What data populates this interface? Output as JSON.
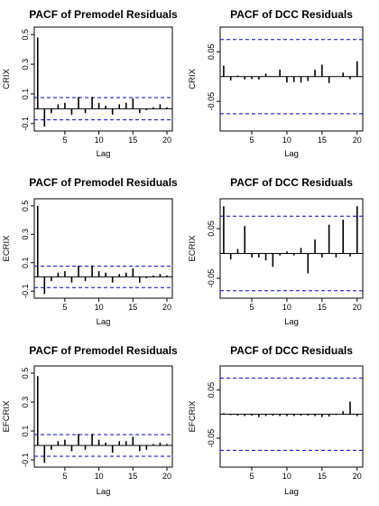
{
  "chart_data": [
    {
      "type": "bar",
      "title": "PACF of Premodel Residuals",
      "xlabel": "Lag",
      "ylabel": "CRIX",
      "x": [
        1,
        2,
        3,
        4,
        5,
        6,
        7,
        8,
        9,
        10,
        11,
        12,
        13,
        14,
        15,
        16,
        17,
        18,
        19,
        20
      ],
      "values": [
        0.48,
        -0.12,
        -0.03,
        0.03,
        0.04,
        -0.04,
        0.08,
        -0.03,
        0.08,
        0.04,
        0.02,
        -0.04,
        0.03,
        0.04,
        0.07,
        -0.03,
        -0.01,
        0.01,
        0.03,
        0.01
      ],
      "xlim": [
        0.5,
        20.8
      ],
      "ylim": [
        -0.15,
        0.55
      ],
      "xticks": [
        5,
        10,
        15,
        20
      ],
      "yticks": [
        -0.1,
        0.1,
        0.3,
        0.5
      ],
      "ytick_labels": [
        "-0.1",
        "0.1",
        "0.3",
        "0.5"
      ],
      "confidence_band": 0.075,
      "band_color": "#0000cc"
    },
    {
      "type": "bar",
      "title": "PACF of DCC Residuals",
      "xlabel": "Lag",
      "ylabel": "CRIX",
      "x": [
        1,
        2,
        3,
        4,
        5,
        6,
        7,
        8,
        9,
        10,
        11,
        12,
        13,
        14,
        15,
        16,
        17,
        18,
        19,
        20
      ],
      "values": [
        0.022,
        -0.008,
        0.002,
        -0.006,
        -0.005,
        -0.006,
        0.006,
        0.0,
        0.014,
        -0.012,
        -0.011,
        -0.012,
        -0.009,
        0.014,
        0.024,
        -0.013,
        0.0,
        0.008,
        -0.005,
        0.031
      ],
      "xlim": [
        0.5,
        20.8
      ],
      "ylim": [
        -0.11,
        0.1
      ],
      "xticks": [
        5,
        10,
        15,
        20
      ],
      "yticks": [
        -0.05,
        0.05
      ],
      "ytick_labels": [
        "-0.05",
        "0.05"
      ],
      "confidence_band": 0.075,
      "band_color": "#0000cc"
    },
    {
      "type": "bar",
      "title": "PACF of Premodel Residuals",
      "xlabel": "Lag",
      "ylabel": "ECRIX",
      "x": [
        1,
        2,
        3,
        4,
        5,
        6,
        7,
        8,
        9,
        10,
        11,
        12,
        13,
        14,
        15,
        16,
        17,
        18,
        19,
        20
      ],
      "values": [
        0.5,
        -0.12,
        -0.03,
        0.03,
        0.04,
        -0.04,
        0.08,
        -0.03,
        0.08,
        0.04,
        0.03,
        -0.04,
        0.02,
        0.03,
        0.06,
        -0.04,
        -0.01,
        0.01,
        0.02,
        0.01
      ],
      "xlim": [
        0.5,
        20.8
      ],
      "ylim": [
        -0.15,
        0.55
      ],
      "xticks": [
        5,
        10,
        15,
        20
      ],
      "yticks": [
        -0.1,
        0.1,
        0.3,
        0.5
      ],
      "ytick_labels": [
        "-0.1",
        "0.1",
        "0.3",
        "0.5"
      ],
      "confidence_band": 0.075,
      "band_color": "#0000cc"
    },
    {
      "type": "bar",
      "title": "PACF of DCC Residuals",
      "xlabel": "Lag",
      "ylabel": "ECRIX",
      "x": [
        1,
        2,
        3,
        4,
        5,
        6,
        7,
        8,
        9,
        10,
        11,
        12,
        13,
        14,
        15,
        16,
        17,
        18,
        19,
        20
      ],
      "values": [
        0.095,
        -0.012,
        0.009,
        0.055,
        -0.008,
        -0.008,
        -0.014,
        -0.027,
        -0.004,
        0.004,
        -0.004,
        0.011,
        -0.04,
        0.028,
        -0.008,
        0.058,
        -0.008,
        0.068,
        -0.006,
        0.095
      ],
      "xlim": [
        0.5,
        20.8
      ],
      "ylim": [
        -0.09,
        0.11
      ],
      "xticks": [
        5,
        10,
        15,
        20
      ],
      "yticks": [
        -0.05,
        0.05
      ],
      "ytick_labels": [
        "-0.05",
        "0.05"
      ],
      "confidence_band": 0.075,
      "band_color": "#0000cc"
    },
    {
      "type": "bar",
      "title": "PACF of Premodel Residuals",
      "xlabel": "Lag",
      "ylabel": "EFCRIX",
      "x": [
        1,
        2,
        3,
        4,
        5,
        6,
        7,
        8,
        9,
        10,
        11,
        12,
        13,
        14,
        15,
        16,
        17,
        18,
        19,
        20
      ],
      "values": [
        0.48,
        -0.12,
        -0.03,
        0.03,
        0.04,
        -0.04,
        0.08,
        -0.03,
        0.08,
        0.04,
        0.02,
        -0.05,
        0.03,
        0.03,
        0.06,
        -0.04,
        -0.03,
        0.01,
        0.02,
        0.01
      ],
      "xlim": [
        0.5,
        20.8
      ],
      "ylim": [
        -0.15,
        0.55
      ],
      "xticks": [
        5,
        10,
        15,
        20
      ],
      "yticks": [
        -0.1,
        0.1,
        0.3,
        0.5
      ],
      "ytick_labels": [
        "-0.1",
        "0.1",
        "0.3",
        "0.5"
      ],
      "confidence_band": 0.075,
      "band_color": "#0000cc"
    },
    {
      "type": "bar",
      "title": "PACF of DCC Residuals",
      "xlabel": "Lag",
      "ylabel": "EFCRIX",
      "x": [
        1,
        2,
        3,
        4,
        5,
        6,
        7,
        8,
        9,
        10,
        11,
        12,
        13,
        14,
        15,
        16,
        17,
        18,
        19,
        20
      ],
      "values": [
        0.002,
        -0.002,
        -0.003,
        -0.004,
        -0.003,
        -0.006,
        -0.004,
        -0.003,
        -0.004,
        -0.004,
        -0.004,
        -0.003,
        -0.003,
        -0.004,
        -0.006,
        -0.005,
        -0.002,
        0.006,
        0.026,
        -0.004
      ],
      "xlim": [
        0.5,
        20.8
      ],
      "ylim": [
        -0.11,
        0.1
      ],
      "xticks": [
        5,
        10,
        15,
        20
      ],
      "yticks": [
        -0.05,
        0.05
      ],
      "ytick_labels": [
        "-0.05",
        "0.05"
      ],
      "confidence_band": 0.075,
      "band_color": "#0000cc"
    }
  ]
}
